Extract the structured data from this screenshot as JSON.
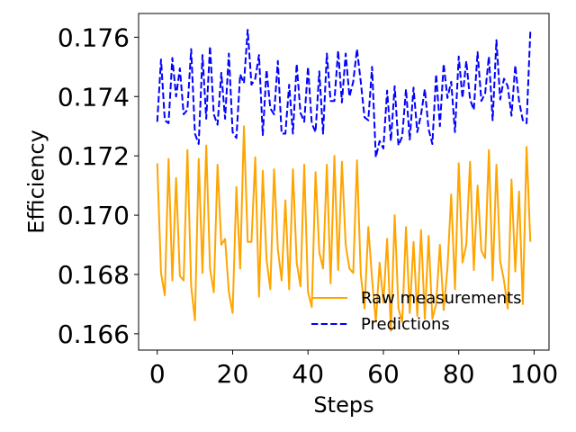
{
  "chart_data": {
    "type": "line",
    "title": "",
    "xlabel": "Steps",
    "ylabel": "Efficiency",
    "xlim": [
      -4.95,
      103.95
    ],
    "ylim": [
      0.16545,
      0.1768
    ],
    "x_ticks": [
      0,
      20,
      40,
      60,
      80,
      100
    ],
    "y_ticks": [
      0.166,
      0.168,
      0.17,
      0.172,
      0.174,
      0.176
    ],
    "y_tick_labels": [
      "0.166",
      "0.168",
      "0.170",
      "0.172",
      "0.174",
      "0.176"
    ],
    "grid": false,
    "legend_position": "lower-right",
    "x_start": 0,
    "x_step": 1,
    "series": [
      {
        "name": "Raw measurements",
        "color": "#ffa500",
        "style": "solid",
        "values": [
          0.17175,
          0.16805,
          0.1673,
          0.1719,
          0.1678,
          0.17125,
          0.16795,
          0.1678,
          0.1722,
          0.1676,
          0.16645,
          0.1719,
          0.16805,
          0.17235,
          0.1682,
          0.1674,
          0.1717,
          0.169,
          0.1692,
          0.1674,
          0.1667,
          0.17095,
          0.1682,
          0.173,
          0.1691,
          0.1691,
          0.17195,
          0.16725,
          0.1715,
          0.1685,
          0.1675,
          0.17155,
          0.16885,
          0.1678,
          0.1705,
          0.1675,
          0.17155,
          0.1684,
          0.1676,
          0.1717,
          0.1674,
          0.1669,
          0.17145,
          0.16875,
          0.1682,
          0.1717,
          0.1677,
          0.172,
          0.16815,
          0.1718,
          0.169,
          0.1682,
          0.16805,
          0.17185,
          0.168,
          0.16685,
          0.1696,
          0.16785,
          0.1664,
          0.1684,
          0.16705,
          0.1692,
          0.1661,
          0.17,
          0.16685,
          0.1664,
          0.1696,
          0.1667,
          0.1691,
          0.1666,
          0.1695,
          0.1665,
          0.1693,
          0.1665,
          0.167,
          0.169,
          0.1668,
          0.1682,
          0.1707,
          0.1675,
          0.17175,
          0.1684,
          0.169,
          0.1718,
          0.16815,
          0.171,
          0.1688,
          0.16855,
          0.1722,
          0.1678,
          0.1717,
          0.16845,
          0.1678,
          0.16685,
          0.1712,
          0.1681,
          0.1708,
          0.167,
          0.1723,
          0.1691
        ]
      },
      {
        "name": "Predictions",
        "color": "#0000ff",
        "style": "dashed",
        "values": [
          0.17315,
          0.17525,
          0.1732,
          0.1731,
          0.1753,
          0.174,
          0.17495,
          0.1734,
          0.17355,
          0.1756,
          0.17275,
          0.1724,
          0.1754,
          0.17325,
          0.1757,
          0.1734,
          0.17305,
          0.1748,
          0.17325,
          0.17545,
          0.1728,
          0.1726,
          0.17475,
          0.17445,
          0.17625,
          0.1744,
          0.1746,
          0.1754,
          0.1727,
          0.1749,
          0.1736,
          0.1734,
          0.1752,
          0.17275,
          0.17275,
          0.1744,
          0.17275,
          0.1751,
          0.17345,
          0.17315,
          0.175,
          0.1731,
          0.1728,
          0.17485,
          0.17275,
          0.17545,
          0.17385,
          0.17385,
          0.17555,
          0.1738,
          0.17545,
          0.174,
          0.1745,
          0.1756,
          0.1745,
          0.1733,
          0.1732,
          0.175,
          0.17195,
          0.1725,
          0.17225,
          0.1742,
          0.1725,
          0.17435,
          0.17235,
          0.17265,
          0.17425,
          0.17255,
          0.1743,
          0.1728,
          0.1734,
          0.17425,
          0.1729,
          0.1724,
          0.17475,
          0.173,
          0.1751,
          0.17395,
          0.1745,
          0.1728,
          0.17535,
          0.17395,
          0.1752,
          0.1739,
          0.17355,
          0.1755,
          0.17385,
          0.1741,
          0.17535,
          0.1732,
          0.1759,
          0.1739,
          0.1746,
          0.17435,
          0.17335,
          0.17505,
          0.17385,
          0.1732,
          0.1731,
          0.1762
        ]
      }
    ]
  }
}
